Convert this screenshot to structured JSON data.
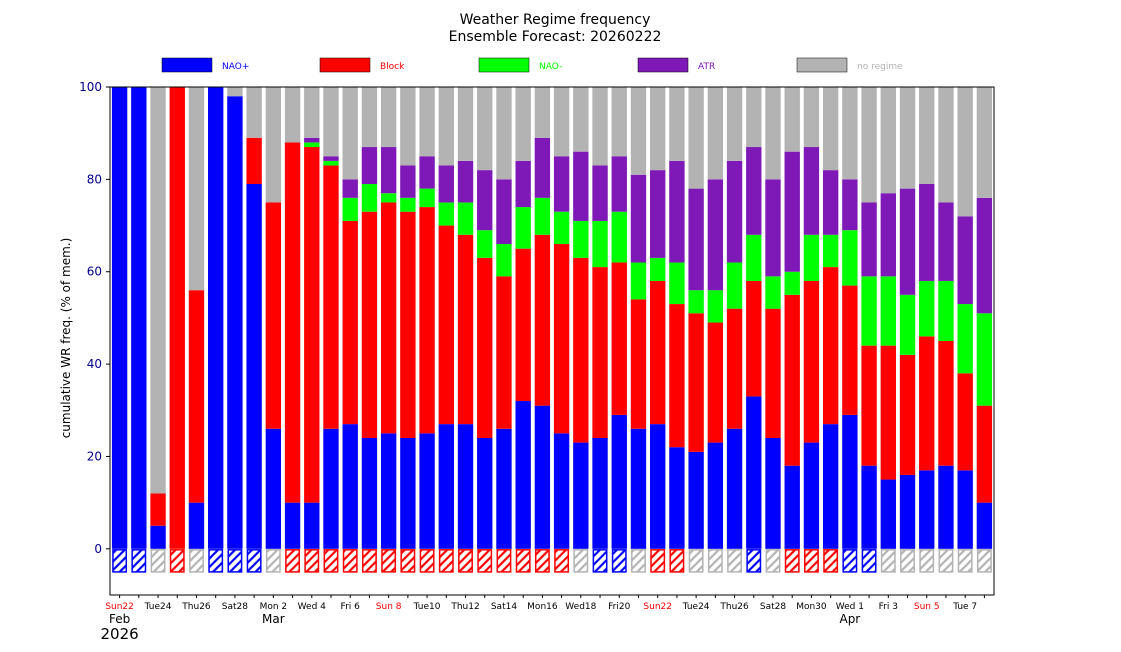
{
  "chart_data": {
    "type": "bar",
    "stacked": true,
    "title": "Weather Regime frequency",
    "subtitle": "Ensemble Forecast: 20260222",
    "ylabel": "cumulative WR freq. (% of mem.)",
    "ylim": [
      -10,
      100
    ],
    "yticks": [
      0,
      20,
      40,
      60,
      80,
      100
    ],
    "legend_position": "top",
    "series": [
      {
        "name": "NAO+",
        "color": "#0000ff",
        "values": [
          100,
          100,
          5,
          0,
          10,
          100,
          98,
          79,
          26,
          10,
          10,
          26,
          27,
          24,
          25,
          24,
          25,
          27,
          27,
          24,
          26,
          32,
          31,
          25,
          23,
          24,
          29,
          26,
          27,
          22,
          21,
          23,
          26,
          33,
          24,
          18,
          23,
          27,
          29,
          18,
          15,
          16,
          17,
          18,
          17,
          10
        ]
      },
      {
        "name": "Block",
        "color": "#ff0000",
        "values": [
          0,
          0,
          7,
          100,
          46,
          0,
          0,
          10,
          49,
          78,
          77,
          57,
          44,
          49,
          50,
          49,
          49,
          43,
          41,
          39,
          33,
          33,
          37,
          41,
          40,
          37,
          33,
          28,
          31,
          31,
          30,
          26,
          26,
          25,
          28,
          37,
          35,
          34,
          28,
          26,
          29,
          26,
          29,
          27,
          21,
          21
        ]
      },
      {
        "name": "NAO-",
        "color": "#00ff00",
        "values": [
          0,
          0,
          0,
          0,
          0,
          0,
          0,
          0,
          0,
          0,
          1,
          1,
          5,
          6,
          2,
          3,
          4,
          5,
          7,
          6,
          7,
          9,
          8,
          7,
          8,
          10,
          11,
          8,
          5,
          9,
          5,
          7,
          10,
          10,
          7,
          5,
          10,
          7,
          12,
          15,
          15,
          13,
          12,
          13,
          15,
          20
        ]
      },
      {
        "name": "ATR",
        "color": "#7e18b6",
        "values": [
          0,
          0,
          0,
          0,
          0,
          0,
          0,
          0,
          0,
          0,
          1,
          1,
          4,
          8,
          10,
          7,
          7,
          8,
          9,
          13,
          14,
          10,
          13,
          12,
          15,
          12,
          12,
          19,
          19,
          22,
          22,
          24,
          22,
          19,
          21,
          26,
          19,
          14,
          11,
          16,
          18,
          23,
          21,
          17,
          19,
          25
        ]
      },
      {
        "name": "no regime",
        "color": "#b3b3b3",
        "values": [
          0,
          0,
          88,
          0,
          44,
          0,
          2,
          11,
          25,
          12,
          11,
          15,
          20,
          13,
          13,
          17,
          15,
          17,
          16,
          18,
          20,
          16,
          11,
          15,
          14,
          17,
          15,
          19,
          18,
          16,
          22,
          20,
          16,
          13,
          20,
          14,
          13,
          18,
          20,
          25,
          23,
          22,
          21,
          25,
          28,
          24
        ]
      }
    ],
    "regime_markers": [
      "NAO+",
      "NAO+",
      "no regime",
      "Block",
      "no regime",
      "NAO+",
      "NAO+",
      "NAO+",
      "no regime",
      "Block",
      "Block",
      "Block",
      "Block",
      "Block",
      "Block",
      "Block",
      "Block",
      "Block",
      "Block",
      "Block",
      "Block",
      "Block",
      "Block",
      "Block",
      "no regime",
      "NAO+",
      "NAO+",
      "no regime",
      "Block",
      "Block",
      "no regime",
      "no regime",
      "no regime",
      "NAO+",
      "no regime",
      "Block",
      "Block",
      "Block",
      "NAO+",
      "NAO+",
      "no regime",
      "no regime",
      "no regime",
      "no regime",
      "no regime",
      "no regime"
    ],
    "x_tick_labels": [
      {
        "index": 0,
        "label": "Sun22",
        "color": "#ff0000"
      },
      {
        "index": 2,
        "label": "Tue24",
        "color": "#000000"
      },
      {
        "index": 4,
        "label": "Thu26",
        "color": "#000000"
      },
      {
        "index": 6,
        "label": "Sat28",
        "color": "#000000"
      },
      {
        "index": 8,
        "label": "Mon 2",
        "color": "#000000"
      },
      {
        "index": 10,
        "label": "Wed 4",
        "color": "#000000"
      },
      {
        "index": 12,
        "label": "Fri 6",
        "color": "#000000"
      },
      {
        "index": 14,
        "label": "Sun 8",
        "color": "#ff0000"
      },
      {
        "index": 16,
        "label": "Tue10",
        "color": "#000000"
      },
      {
        "index": 18,
        "label": "Thu12",
        "color": "#000000"
      },
      {
        "index": 20,
        "label": "Sat14",
        "color": "#000000"
      },
      {
        "index": 22,
        "label": "Mon16",
        "color": "#000000"
      },
      {
        "index": 24,
        "label": "Wed18",
        "color": "#000000"
      },
      {
        "index": 26,
        "label": "Fri20",
        "color": "#000000"
      },
      {
        "index": 28,
        "label": "Sun22",
        "color": "#ff0000"
      },
      {
        "index": 30,
        "label": "Tue24",
        "color": "#000000"
      },
      {
        "index": 32,
        "label": "Thu26",
        "color": "#000000"
      },
      {
        "index": 34,
        "label": "Sat28",
        "color": "#000000"
      },
      {
        "index": 36,
        "label": "Mon30",
        "color": "#000000"
      },
      {
        "index": 38,
        "label": "Wed 1",
        "color": "#000000"
      },
      {
        "index": 40,
        "label": "Fri 3",
        "color": "#000000"
      },
      {
        "index": 42,
        "label": "Sun 5",
        "color": "#ff0000"
      },
      {
        "index": 44,
        "label": "Tue 7",
        "color": "#000000"
      }
    ],
    "month_labels": [
      {
        "index": 0,
        "label": "Feb"
      },
      {
        "index": 8,
        "label": "Mar"
      },
      {
        "index": 38,
        "label": "Apr"
      }
    ],
    "year_label": "2026"
  }
}
